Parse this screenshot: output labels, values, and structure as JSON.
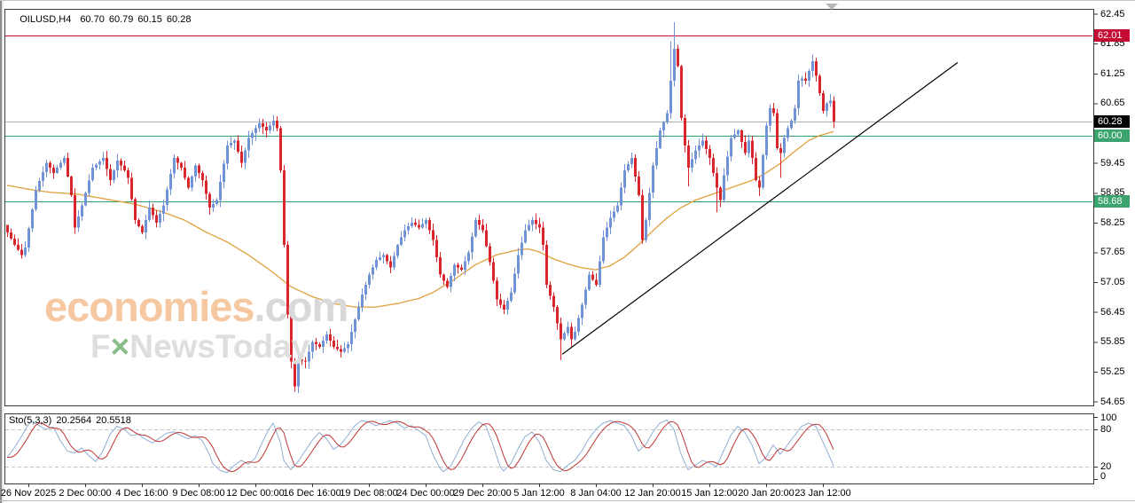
{
  "header": {
    "symbol_period": "OILUSD,H4",
    "open": "60.70",
    "high": "60.79",
    "low": "60.15",
    "close": "60.28"
  },
  "indicator_header": {
    "name": "Sto(5,3,3)",
    "main_value": "20.2564",
    "signal_value": "20.5518"
  },
  "watermark": {
    "brand": "economies",
    "brand_suffix": ".com",
    "tagline_f": "F",
    "tagline_x": "×",
    "tagline_rest": "NewsToday"
  },
  "colors": {
    "bull": "#7093d8",
    "bear": "#d9262c",
    "ma": "#dfa03c",
    "trendline": "#000000",
    "sto_main": "#8fafd2",
    "sto_signal": "#bf3333",
    "sto_level": "#c4c4c4",
    "resistance": "#c40b33",
    "support": "#2e9c6b",
    "current": "#afafaf",
    "badge_current_bg": "#000000",
    "badge_resistance_bg": "#c40b33",
    "badge_support_bg": "#3ba46e",
    "axis_text": "#000000",
    "panel_border": "#3a3a3a"
  },
  "chart_data": {
    "type": "candlestick",
    "symbol": "OILUSD",
    "period": "H4",
    "last_ohlc": {
      "open": 60.7,
      "high": 60.79,
      "low": 60.15,
      "close": 60.28
    },
    "ylim": [
      54.57,
      62.55
    ],
    "grid": false,
    "bar_count": 234,
    "price_ticks": [
      62.45,
      61.85,
      61.25,
      60.65,
      59.45,
      58.85,
      58.25,
      57.65,
      57.05,
      56.45,
      55.85,
      55.25,
      54.65
    ],
    "levels": [
      {
        "price": 62.01,
        "label": "62.01",
        "role": "resistance"
      },
      {
        "price": 60.28,
        "label": "60.28",
        "role": "current"
      },
      {
        "price": 60.0,
        "label": "60.00",
        "role": "support"
      },
      {
        "price": 58.68,
        "label": "58.68",
        "role": "support"
      }
    ],
    "trendline": {
      "from_bar": 156.5,
      "from_price": 55.6,
      "to_bar": 268,
      "to_price": 61.47
    },
    "time_ticks": {
      "first_bar": 6,
      "bar_step": 16,
      "labels": [
        "26 Nov 2025",
        "2 Dec 00:00",
        "4 Dec 16:00",
        "9 Dec 08:00",
        "12 Dec 00:00",
        "16 Dec 16:00",
        "19 Dec 08:00",
        "24 Dec 00:00",
        "29 Dec 20:00",
        "5 Jan 12:00",
        "8 Jan 04:00",
        "12 Jan 20:00",
        "15 Jan 12:00",
        "20 Jan 20:00",
        "23 Jan 12:00"
      ]
    },
    "close_anchors": [
      [
        0,
        58.05
      ],
      [
        2,
        57.8
      ],
      [
        4,
        57.6
      ],
      [
        5,
        57.75
      ],
      [
        8,
        58.9
      ],
      [
        11,
        59.45
      ],
      [
        13,
        59.25
      ],
      [
        16,
        59.55
      ],
      [
        18,
        58.8
      ],
      [
        19,
        58.15
      ],
      [
        21,
        58.6
      ],
      [
        24,
        59.35
      ],
      [
        27,
        59.55
      ],
      [
        29,
        59.1
      ],
      [
        31,
        59.5
      ],
      [
        33,
        59.3
      ],
      [
        34,
        59.15
      ],
      [
        36,
        58.3
      ],
      [
        38,
        58.05
      ],
      [
        40,
        58.55
      ],
      [
        42,
        58.25
      ],
      [
        44,
        58.6
      ],
      [
        47,
        59.55
      ],
      [
        49,
        59.35
      ],
      [
        51,
        58.95
      ],
      [
        53,
        59.4
      ],
      [
        55,
        59.1
      ],
      [
        57,
        58.55
      ],
      [
        59,
        58.7
      ],
      [
        62,
        59.8
      ],
      [
        64,
        59.9
      ],
      [
        66,
        59.45
      ],
      [
        68,
        59.95
      ],
      [
        71,
        60.25
      ],
      [
        73,
        60.1
      ],
      [
        75,
        60.3
      ],
      [
        76,
        60.15
      ],
      [
        77,
        59.3
      ],
      [
        78,
        57.8
      ],
      [
        79,
        56.4
      ],
      [
        80,
        55.45
      ],
      [
        81,
        54.95
      ],
      [
        82,
        55.5
      ],
      [
        84,
        55.45
      ],
      [
        86,
        55.85
      ],
      [
        88,
        55.75
      ],
      [
        90,
        56.0
      ],
      [
        92,
        55.75
      ],
      [
        94,
        55.65
      ],
      [
        96,
        55.8
      ],
      [
        98,
        56.3
      ],
      [
        100,
        56.8
      ],
      [
        102,
        57.2
      ],
      [
        104,
        57.5
      ],
      [
        106,
        57.6
      ],
      [
        108,
        57.35
      ],
      [
        110,
        57.8
      ],
      [
        112,
        58.1
      ],
      [
        114,
        58.25
      ],
      [
        116,
        58.15
      ],
      [
        118,
        58.3
      ],
      [
        120,
        57.9
      ],
      [
        122,
        57.2
      ],
      [
        124,
        56.95
      ],
      [
        126,
        57.4
      ],
      [
        128,
        57.3
      ],
      [
        130,
        57.65
      ],
      [
        132,
        58.3
      ],
      [
        134,
        58.1
      ],
      [
        136,
        57.45
      ],
      [
        138,
        56.7
      ],
      [
        140,
        56.5
      ],
      [
        142,
        56.85
      ],
      [
        144,
        57.6
      ],
      [
        146,
        58.1
      ],
      [
        148,
        58.3
      ],
      [
        150,
        58.15
      ],
      [
        151,
        57.8
      ],
      [
        152,
        57.0
      ],
      [
        154,
        56.55
      ],
      [
        156,
        55.9
      ],
      [
        158,
        56.15
      ],
      [
        159,
        55.9
      ],
      [
        160,
        56.05
      ],
      [
        162,
        56.6
      ],
      [
        164,
        57.2
      ],
      [
        166,
        57.0
      ],
      [
        168,
        57.95
      ],
      [
        170,
        58.35
      ],
      [
        172,
        58.6
      ],
      [
        174,
        59.3
      ],
      [
        176,
        59.55
      ],
      [
        178,
        58.8
      ],
      [
        179,
        57.9
      ],
      [
        180,
        58.3
      ],
      [
        182,
        59.4
      ],
      [
        184,
        60.1
      ],
      [
        186,
        60.45
      ],
      [
        187,
        61.1
      ],
      [
        188,
        61.75
      ],
      [
        189,
        61.4
      ],
      [
        190,
        60.35
      ],
      [
        191,
        59.8
      ],
      [
        192,
        59.35
      ],
      [
        194,
        59.7
      ],
      [
        196,
        59.9
      ],
      [
        198,
        59.55
      ],
      [
        200,
        58.95
      ],
      [
        201,
        58.7
      ],
      [
        202,
        59.2
      ],
      [
        204,
        59.95
      ],
      [
        206,
        60.1
      ],
      [
        208,
        59.65
      ],
      [
        209,
        59.9
      ],
      [
        210,
        59.55
      ],
      [
        211,
        59.1
      ],
      [
        212,
        58.95
      ],
      [
        213,
        59.6
      ],
      [
        214,
        60.2
      ],
      [
        215,
        60.55
      ],
      [
        216,
        60.45
      ],
      [
        217,
        59.75
      ],
      [
        218,
        59.65
      ],
      [
        219,
        59.95
      ],
      [
        220,
        60.15
      ],
      [
        221,
        60.3
      ],
      [
        222,
        60.55
      ],
      [
        223,
        61.1
      ],
      [
        224,
        61.15
      ],
      [
        225,
        61.1
      ],
      [
        226,
        61.3
      ],
      [
        227,
        61.5
      ],
      [
        228,
        61.2
      ],
      [
        229,
        60.85
      ],
      [
        230,
        60.5
      ],
      [
        231,
        60.65
      ],
      [
        232,
        60.7
      ],
      [
        233,
        60.28
      ]
    ],
    "candle_overrides": {
      "0": {
        "o": 58.2
      },
      "81": {
        "l": 54.85
      },
      "156": {
        "l": 55.48
      },
      "187": {
        "h": 61.9
      },
      "188": {
        "h": 62.28
      },
      "192": {
        "l": 58.98
      },
      "200": {
        "l": 58.45
      },
      "212": {
        "l": 58.78
      },
      "218": {
        "l": 59.15
      },
      "227": {
        "h": 61.63
      },
      "233": {
        "o": 60.7,
        "h": 60.79,
        "l": 60.15,
        "c": 60.28
      }
    },
    "ma_anchors": [
      [
        0,
        59.0
      ],
      [
        6,
        58.92
      ],
      [
        12,
        58.86
      ],
      [
        20,
        58.82
      ],
      [
        28,
        58.72
      ],
      [
        36,
        58.62
      ],
      [
        44,
        58.46
      ],
      [
        50,
        58.3
      ],
      [
        56,
        58.06
      ],
      [
        62,
        57.86
      ],
      [
        68,
        57.6
      ],
      [
        74,
        57.3
      ],
      [
        80,
        56.96
      ],
      [
        86,
        56.76
      ],
      [
        92,
        56.62
      ],
      [
        98,
        56.55
      ],
      [
        104,
        56.55
      ],
      [
        110,
        56.62
      ],
      [
        116,
        56.72
      ],
      [
        120,
        56.84
      ],
      [
        126,
        57.1
      ],
      [
        132,
        57.4
      ],
      [
        138,
        57.6
      ],
      [
        144,
        57.7
      ],
      [
        147,
        57.72
      ],
      [
        150,
        57.66
      ],
      [
        154,
        57.52
      ],
      [
        158,
        57.42
      ],
      [
        162,
        57.34
      ],
      [
        166,
        57.3
      ],
      [
        170,
        57.38
      ],
      [
        174,
        57.55
      ],
      [
        178,
        57.8
      ],
      [
        182,
        58.08
      ],
      [
        186,
        58.34
      ],
      [
        190,
        58.55
      ],
      [
        194,
        58.7
      ],
      [
        198,
        58.8
      ],
      [
        202,
        58.9
      ],
      [
        206,
        59.0
      ],
      [
        210,
        59.1
      ],
      [
        214,
        59.25
      ],
      [
        218,
        59.44
      ],
      [
        222,
        59.68
      ],
      [
        226,
        59.9
      ],
      [
        229,
        60.0
      ],
      [
        233,
        60.08
      ]
    ],
    "stochastic": {
      "label": "Sto(5,3,3)",
      "current_main": 20.2564,
      "current_signal": 20.5518,
      "ylim": [
        0,
        100
      ],
      "levels": [
        80,
        20
      ],
      "axis_labels": [
        100,
        80,
        20,
        0
      ],
      "anchors": [
        [
          0,
          35
        ],
        [
          2,
          50
        ],
        [
          4,
          68
        ],
        [
          6,
          88
        ],
        [
          7,
          93
        ],
        [
          9,
          86
        ],
        [
          11,
          80
        ],
        [
          13,
          84
        ],
        [
          15,
          62
        ],
        [
          17,
          45
        ],
        [
          19,
          42
        ],
        [
          21,
          50
        ],
        [
          23,
          38
        ],
        [
          25,
          28
        ],
        [
          27,
          45
        ],
        [
          29,
          72
        ],
        [
          31,
          85
        ],
        [
          33,
          80
        ],
        [
          35,
          70
        ],
        [
          37,
          72
        ],
        [
          39,
          64
        ],
        [
          41,
          58
        ],
        [
          43,
          66
        ],
        [
          45,
          74
        ],
        [
          47,
          76
        ],
        [
          49,
          70
        ],
        [
          51,
          65
        ],
        [
          53,
          70
        ],
        [
          55,
          62
        ],
        [
          57,
          40
        ],
        [
          58,
          25
        ],
        [
          60,
          14
        ],
        [
          62,
          10
        ],
        [
          64,
          22
        ],
        [
          66,
          30
        ],
        [
          68,
          24
        ],
        [
          70,
          34
        ],
        [
          72,
          60
        ],
        [
          74,
          82
        ],
        [
          75,
          90
        ],
        [
          77,
          60
        ],
        [
          78,
          30
        ],
        [
          80,
          15
        ],
        [
          82,
          28
        ],
        [
          84,
          45
        ],
        [
          86,
          62
        ],
        [
          88,
          75
        ],
        [
          90,
          65
        ],
        [
          92,
          48
        ],
        [
          94,
          55
        ],
        [
          96,
          70
        ],
        [
          98,
          86
        ],
        [
          100,
          94
        ],
        [
          102,
          92
        ],
        [
          104,
          86
        ],
        [
          106,
          90
        ],
        [
          108,
          94
        ],
        [
          110,
          90
        ],
        [
          112,
          82
        ],
        [
          114,
          86
        ],
        [
          116,
          78
        ],
        [
          118,
          70
        ],
        [
          120,
          40
        ],
        [
          122,
          18
        ],
        [
          123,
          12
        ],
        [
          125,
          20
        ],
        [
          127,
          42
        ],
        [
          129,
          65
        ],
        [
          131,
          82
        ],
        [
          133,
          92
        ],
        [
          135,
          85
        ],
        [
          137,
          55
        ],
        [
          139,
          20
        ],
        [
          140,
          13
        ],
        [
          142,
          25
        ],
        [
          144,
          48
        ],
        [
          146,
          68
        ],
        [
          148,
          76
        ],
        [
          150,
          60
        ],
        [
          152,
          30
        ],
        [
          154,
          15
        ],
        [
          156,
          12
        ],
        [
          158,
          22
        ],
        [
          160,
          30
        ],
        [
          162,
          45
        ],
        [
          164,
          65
        ],
        [
          166,
          80
        ],
        [
          168,
          90
        ],
        [
          170,
          94
        ],
        [
          172,
          90
        ],
        [
          174,
          86
        ],
        [
          176,
          70
        ],
        [
          178,
          45
        ],
        [
          180,
          55
        ],
        [
          182,
          75
        ],
        [
          184,
          90
        ],
        [
          186,
          95
        ],
        [
          188,
          80
        ],
        [
          190,
          40
        ],
        [
          192,
          15
        ],
        [
          194,
          22
        ],
        [
          196,
          30
        ],
        [
          198,
          26
        ],
        [
          200,
          20
        ],
        [
          202,
          45
        ],
        [
          204,
          70
        ],
        [
          206,
          85
        ],
        [
          208,
          75
        ],
        [
          210,
          55
        ],
        [
          212,
          25
        ],
        [
          214,
          35
        ],
        [
          216,
          55
        ],
        [
          218,
          40
        ],
        [
          220,
          55
        ],
        [
          222,
          70
        ],
        [
          224,
          85
        ],
        [
          226,
          90
        ],
        [
          228,
          85
        ],
        [
          230,
          60
        ],
        [
          232,
          35
        ],
        [
          233,
          20.4
        ]
      ]
    }
  }
}
